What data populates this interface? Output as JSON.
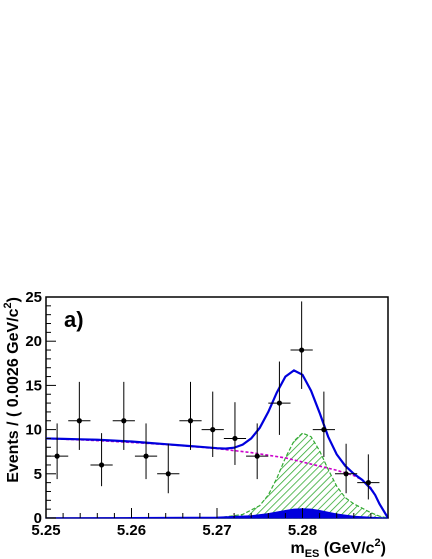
{
  "chart_data": {
    "type": "scatter",
    "panel_label": "a)",
    "xlabel": {
      "main": "m",
      "sub": "ES",
      "unit_open": " (GeV/c",
      "sup": "2",
      "unit_close": ")"
    },
    "ylabel": {
      "main": "Events / ( 0.0026 GeV/c",
      "sup": "2",
      "close": ")"
    },
    "xlim": [
      5.25,
      5.29
    ],
    "ylim": [
      0,
      25
    ],
    "x_ticks": [
      5.25,
      5.26,
      5.27,
      5.28
    ],
    "x_tick_labels": [
      "5.25",
      "5.26",
      "5.27",
      "5.28"
    ],
    "y_ticks": [
      0,
      5,
      10,
      15,
      20,
      25
    ],
    "y_tick_labels": [
      "0",
      "5",
      "10",
      "15",
      "20",
      "25"
    ],
    "grid": false,
    "legend": "none",
    "series": [
      {
        "kind": "data",
        "color": "#000000",
        "x_error": 0.0013,
        "points": [
          {
            "x": 5.2513,
            "y": 7,
            "err_lo": 2.6,
            "err_hi": 3.7
          },
          {
            "x": 5.2539,
            "y": 11,
            "err_lo": 3.3,
            "err_hi": 4.4
          },
          {
            "x": 5.2565,
            "y": 6,
            "err_lo": 2.4,
            "err_hi": 3.6
          },
          {
            "x": 5.2591,
            "y": 11,
            "err_lo": 3.3,
            "err_hi": 4.4
          },
          {
            "x": 5.2617,
            "y": 7,
            "err_lo": 2.6,
            "err_hi": 3.7
          },
          {
            "x": 5.2643,
            "y": 5,
            "err_lo": 2.2,
            "err_hi": 3.4
          },
          {
            "x": 5.2669,
            "y": 11,
            "err_lo": 3.3,
            "err_hi": 4.4
          },
          {
            "x": 5.2695,
            "y": 10,
            "err_lo": 3.1,
            "err_hi": 4.3
          },
          {
            "x": 5.2721,
            "y": 9,
            "err_lo": 3.0,
            "err_hi": 4.1
          },
          {
            "x": 5.2747,
            "y": 7,
            "err_lo": 2.6,
            "err_hi": 3.7
          },
          {
            "x": 5.2773,
            "y": 13,
            "err_lo": 3.6,
            "err_hi": 4.7
          },
          {
            "x": 5.2799,
            "y": 19,
            "err_lo": 4.4,
            "err_hi": 5.5
          },
          {
            "x": 5.2825,
            "y": 10,
            "err_lo": 3.1,
            "err_hi": 4.3
          },
          {
            "x": 5.2851,
            "y": 5,
            "err_lo": 2.2,
            "err_hi": 3.4
          },
          {
            "x": 5.2877,
            "y": 4,
            "err_lo": 1.9,
            "err_hi": 3.2
          }
        ]
      },
      {
        "kind": "total_fit",
        "color": "#0000dd",
        "x": [
          5.25,
          5.252,
          5.254,
          5.256,
          5.258,
          5.26,
          5.262,
          5.264,
          5.266,
          5.268,
          5.27,
          5.271,
          5.272,
          5.273,
          5.274,
          5.275,
          5.276,
          5.277,
          5.278,
          5.279,
          5.28,
          5.281,
          5.282,
          5.283,
          5.284,
          5.285,
          5.286,
          5.287,
          5.288,
          5.2885,
          5.289,
          5.29
        ],
        "y": [
          9.0,
          8.95,
          8.9,
          8.85,
          8.75,
          8.65,
          8.5,
          8.35,
          8.2,
          8.05,
          7.9,
          7.85,
          7.95,
          8.3,
          9.0,
          10.2,
          12.0,
          14.2,
          16.0,
          16.7,
          16.2,
          14.4,
          11.9,
          9.2,
          7.2,
          5.9,
          5.0,
          4.3,
          3.3,
          2.6,
          1.6,
          0
        ]
      },
      {
        "kind": "background",
        "color": "#cc00cc",
        "style": "dashed",
        "x": [
          5.25,
          5.255,
          5.26,
          5.265,
          5.27,
          5.274,
          5.278,
          5.281,
          5.284,
          5.286,
          5.287,
          5.288,
          5.2885,
          5.289,
          5.29
        ],
        "y": [
          9.0,
          8.8,
          8.55,
          8.25,
          7.85,
          7.4,
          6.8,
          6.1,
          5.4,
          4.8,
          4.3,
          3.4,
          2.6,
          1.6,
          0
        ]
      },
      {
        "kind": "peaking_component",
        "color": "#33aa33",
        "fill": "#bfe8bf",
        "style": "hatched",
        "x": [
          5.27,
          5.273,
          5.275,
          5.276,
          5.277,
          5.278,
          5.279,
          5.28,
          5.281,
          5.282,
          5.283,
          5.284,
          5.285,
          5.286,
          5.287,
          5.288,
          5.289,
          5.29
        ],
        "y": [
          0,
          0.4,
          1.4,
          2.6,
          4.5,
          6.8,
          8.7,
          9.6,
          9.2,
          7.6,
          5.5,
          3.6,
          2.3,
          1.6,
          1.1,
          0.6,
          0.2,
          0
        ]
      },
      {
        "kind": "small_component",
        "color": "#0000dd",
        "fill": "#0000dd",
        "x": [
          5.25,
          5.26,
          5.27,
          5.274,
          5.276,
          5.278,
          5.279,
          5.28,
          5.281,
          5.282,
          5.284,
          5.286,
          5.288,
          5.29
        ],
        "y": [
          0.02,
          0.05,
          0.1,
          0.25,
          0.5,
          0.85,
          1.0,
          1.05,
          1.0,
          0.85,
          0.45,
          0.2,
          0.08,
          0
        ]
      }
    ]
  }
}
